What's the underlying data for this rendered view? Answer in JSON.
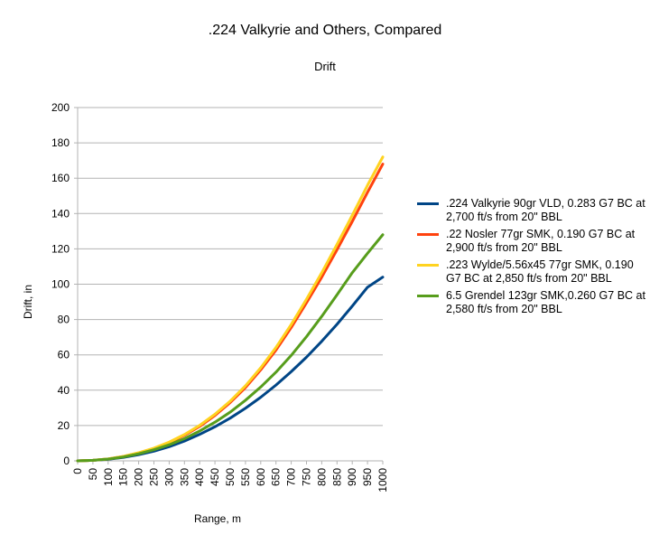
{
  "chart_data": {
    "type": "line",
    "title": ".224 Valkyrie and Others, Compared",
    "subtitle": "Drift",
    "xlabel": "Range, m",
    "ylabel": "Drift, in",
    "xlim": [
      0,
      1000
    ],
    "ylim": [
      0,
      200
    ],
    "x_ticks": [
      0,
      50,
      100,
      150,
      200,
      250,
      300,
      350,
      400,
      450,
      500,
      550,
      600,
      650,
      700,
      750,
      800,
      850,
      900,
      950,
      1000
    ],
    "y_ticks": [
      0,
      20,
      40,
      60,
      80,
      100,
      120,
      140,
      160,
      180,
      200
    ],
    "grid": "horizontal",
    "legend_position": "right",
    "x": [
      0,
      50,
      100,
      150,
      200,
      250,
      300,
      350,
      400,
      450,
      500,
      550,
      600,
      650,
      700,
      750,
      800,
      850,
      900,
      950,
      1000
    ],
    "series": [
      {
        "name": ".224 Valkyrie 90gr VLD, 0.283 G7 BC at 2,700 ft/s from 20\" BBL",
        "color": "#004586",
        "values": [
          0,
          0.3,
          0.9,
          2.0,
          3.5,
          5.5,
          8.0,
          11.2,
          15.0,
          19.3,
          24.2,
          29.8,
          36.0,
          42.9,
          50.5,
          58.7,
          67.7,
          77.3,
          87.6,
          98.3,
          104.0
        ]
      },
      {
        "name": ".22 Nosler 77gr SMK, 0.190 G7 BC at 2,900 ft/s from 20\" BBL",
        "color": "#ff420e",
        "values": [
          0,
          0.3,
          1.1,
          2.5,
          4.5,
          7.0,
          10.3,
          14.5,
          19.5,
          25.7,
          33.0,
          41.5,
          51.5,
          62.7,
          75.5,
          89.5,
          104.0,
          119.5,
          135.5,
          152.0,
          168.0
        ]
      },
      {
        "name": ".223 Wylde/5.56x45 77gr SMK, 0.190 G7 BC at 2,850 ft/s from 20\" BBL",
        "color": "#ffd320",
        "values": [
          0,
          0.3,
          1.1,
          2.5,
          4.6,
          7.2,
          10.6,
          14.9,
          20.1,
          26.4,
          33.8,
          42.5,
          52.7,
          64.2,
          77.2,
          91.5,
          106.5,
          122.5,
          139.0,
          156.0,
          172.0
        ]
      },
      {
        "name": "6.5 Grendel 123gr SMK,0.260 G7 BC at 2,580 ft/s from 20\" BBL",
        "color": "#579d1c",
        "values": [
          0,
          0.3,
          1.0,
          2.2,
          4.0,
          6.3,
          9.1,
          12.6,
          16.9,
          21.9,
          27.6,
          34.3,
          41.8,
          50.2,
          59.7,
          70.3,
          81.8,
          94.0,
          106.5,
          117.5,
          128.0
        ]
      }
    ]
  }
}
